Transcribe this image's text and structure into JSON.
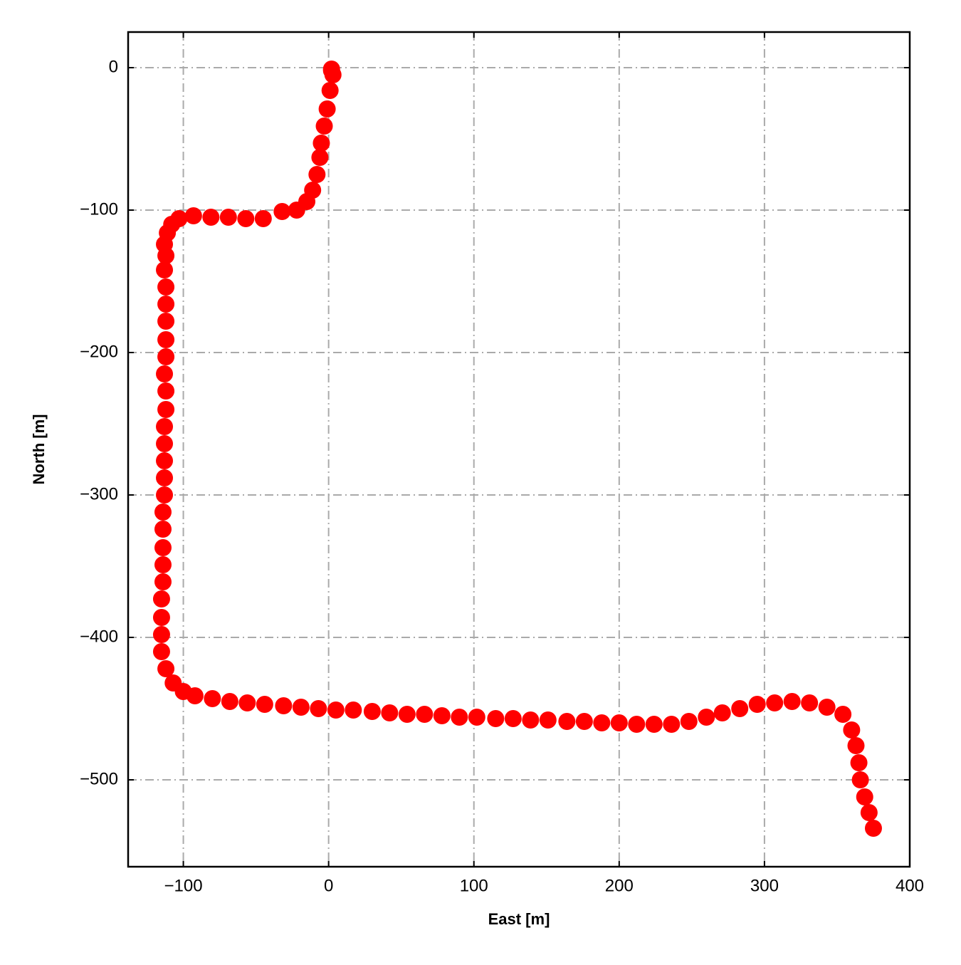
{
  "chart_data": {
    "type": "scatter",
    "xlabel": "East [m]",
    "ylabel": "North [m]",
    "color": "#ff0000",
    "grid": true,
    "xlim": [
      -138,
      400
    ],
    "ylim": [
      -561,
      25
    ],
    "xticks": [
      {
        "value": -100,
        "label": "−100"
      },
      0,
      100,
      200,
      300,
      400
    ],
    "yticks": [
      0,
      {
        "value": -100,
        "label": "−100"
      },
      {
        "value": -200,
        "label": "−200"
      },
      {
        "value": -300,
        "label": "−300"
      },
      {
        "value": -400,
        "label": "−400"
      },
      {
        "value": -500,
        "label": "−500"
      }
    ],
    "x": [
      2,
      2,
      3,
      1,
      -1,
      -3,
      -5,
      -6,
      -8,
      -11,
      -15,
      -22,
      -32,
      -45,
      -57,
      -69,
      -81,
      -93,
      -103,
      -108,
      -111,
      -113,
      -112,
      -113,
      -112,
      -112,
      -112,
      -112,
      -112,
      -113,
      -112,
      -112,
      -113,
      -113,
      -113,
      -113,
      -113,
      -114,
      -114,
      -114,
      -114,
      -114,
      -115,
      -115,
      -115,
      -115,
      -112,
      -107,
      -100,
      -92,
      -80,
      -68,
      -56,
      -44,
      -31,
      -19,
      -7,
      5,
      17,
      30,
      42,
      54,
      66,
      78,
      90,
      102,
      115,
      127,
      139,
      151,
      164,
      176,
      188,
      200,
      212,
      224,
      236,
      248,
      260,
      271,
      283,
      295,
      307,
      319,
      331,
      343,
      354,
      360,
      363,
      365,
      366,
      369,
      372,
      375
    ],
    "y": [
      -1,
      -2,
      -5,
      -16,
      -29,
      -41,
      -53,
      -63,
      -75,
      -86,
      -94,
      -100,
      -101,
      -106,
      -106,
      -105,
      -105,
      -104,
      -106,
      -110,
      -116,
      -124,
      -132,
      -142,
      -154,
      -166,
      -178,
      -191,
      -203,
      -215,
      -227,
      -240,
      -252,
      -264,
      -276,
      -288,
      -300,
      -312,
      -324,
      -337,
      -349,
      -361,
      -373,
      -386,
      -398,
      -410,
      -422,
      -432,
      -438,
      -441,
      -443,
      -445,
      -446,
      -447,
      -448,
      -449,
      -450,
      -451,
      -451,
      -452,
      -453,
      -454,
      -454,
      -455,
      -456,
      -456,
      -457,
      -457,
      -458,
      -458,
      -459,
      -459,
      -460,
      -460,
      -461,
      -461,
      -461,
      -459,
      -456,
      -453,
      -450,
      -447,
      -446,
      -445,
      -446,
      -449,
      -454,
      -465,
      -476,
      -488,
      -500,
      -512,
      -523,
      -534
    ]
  }
}
